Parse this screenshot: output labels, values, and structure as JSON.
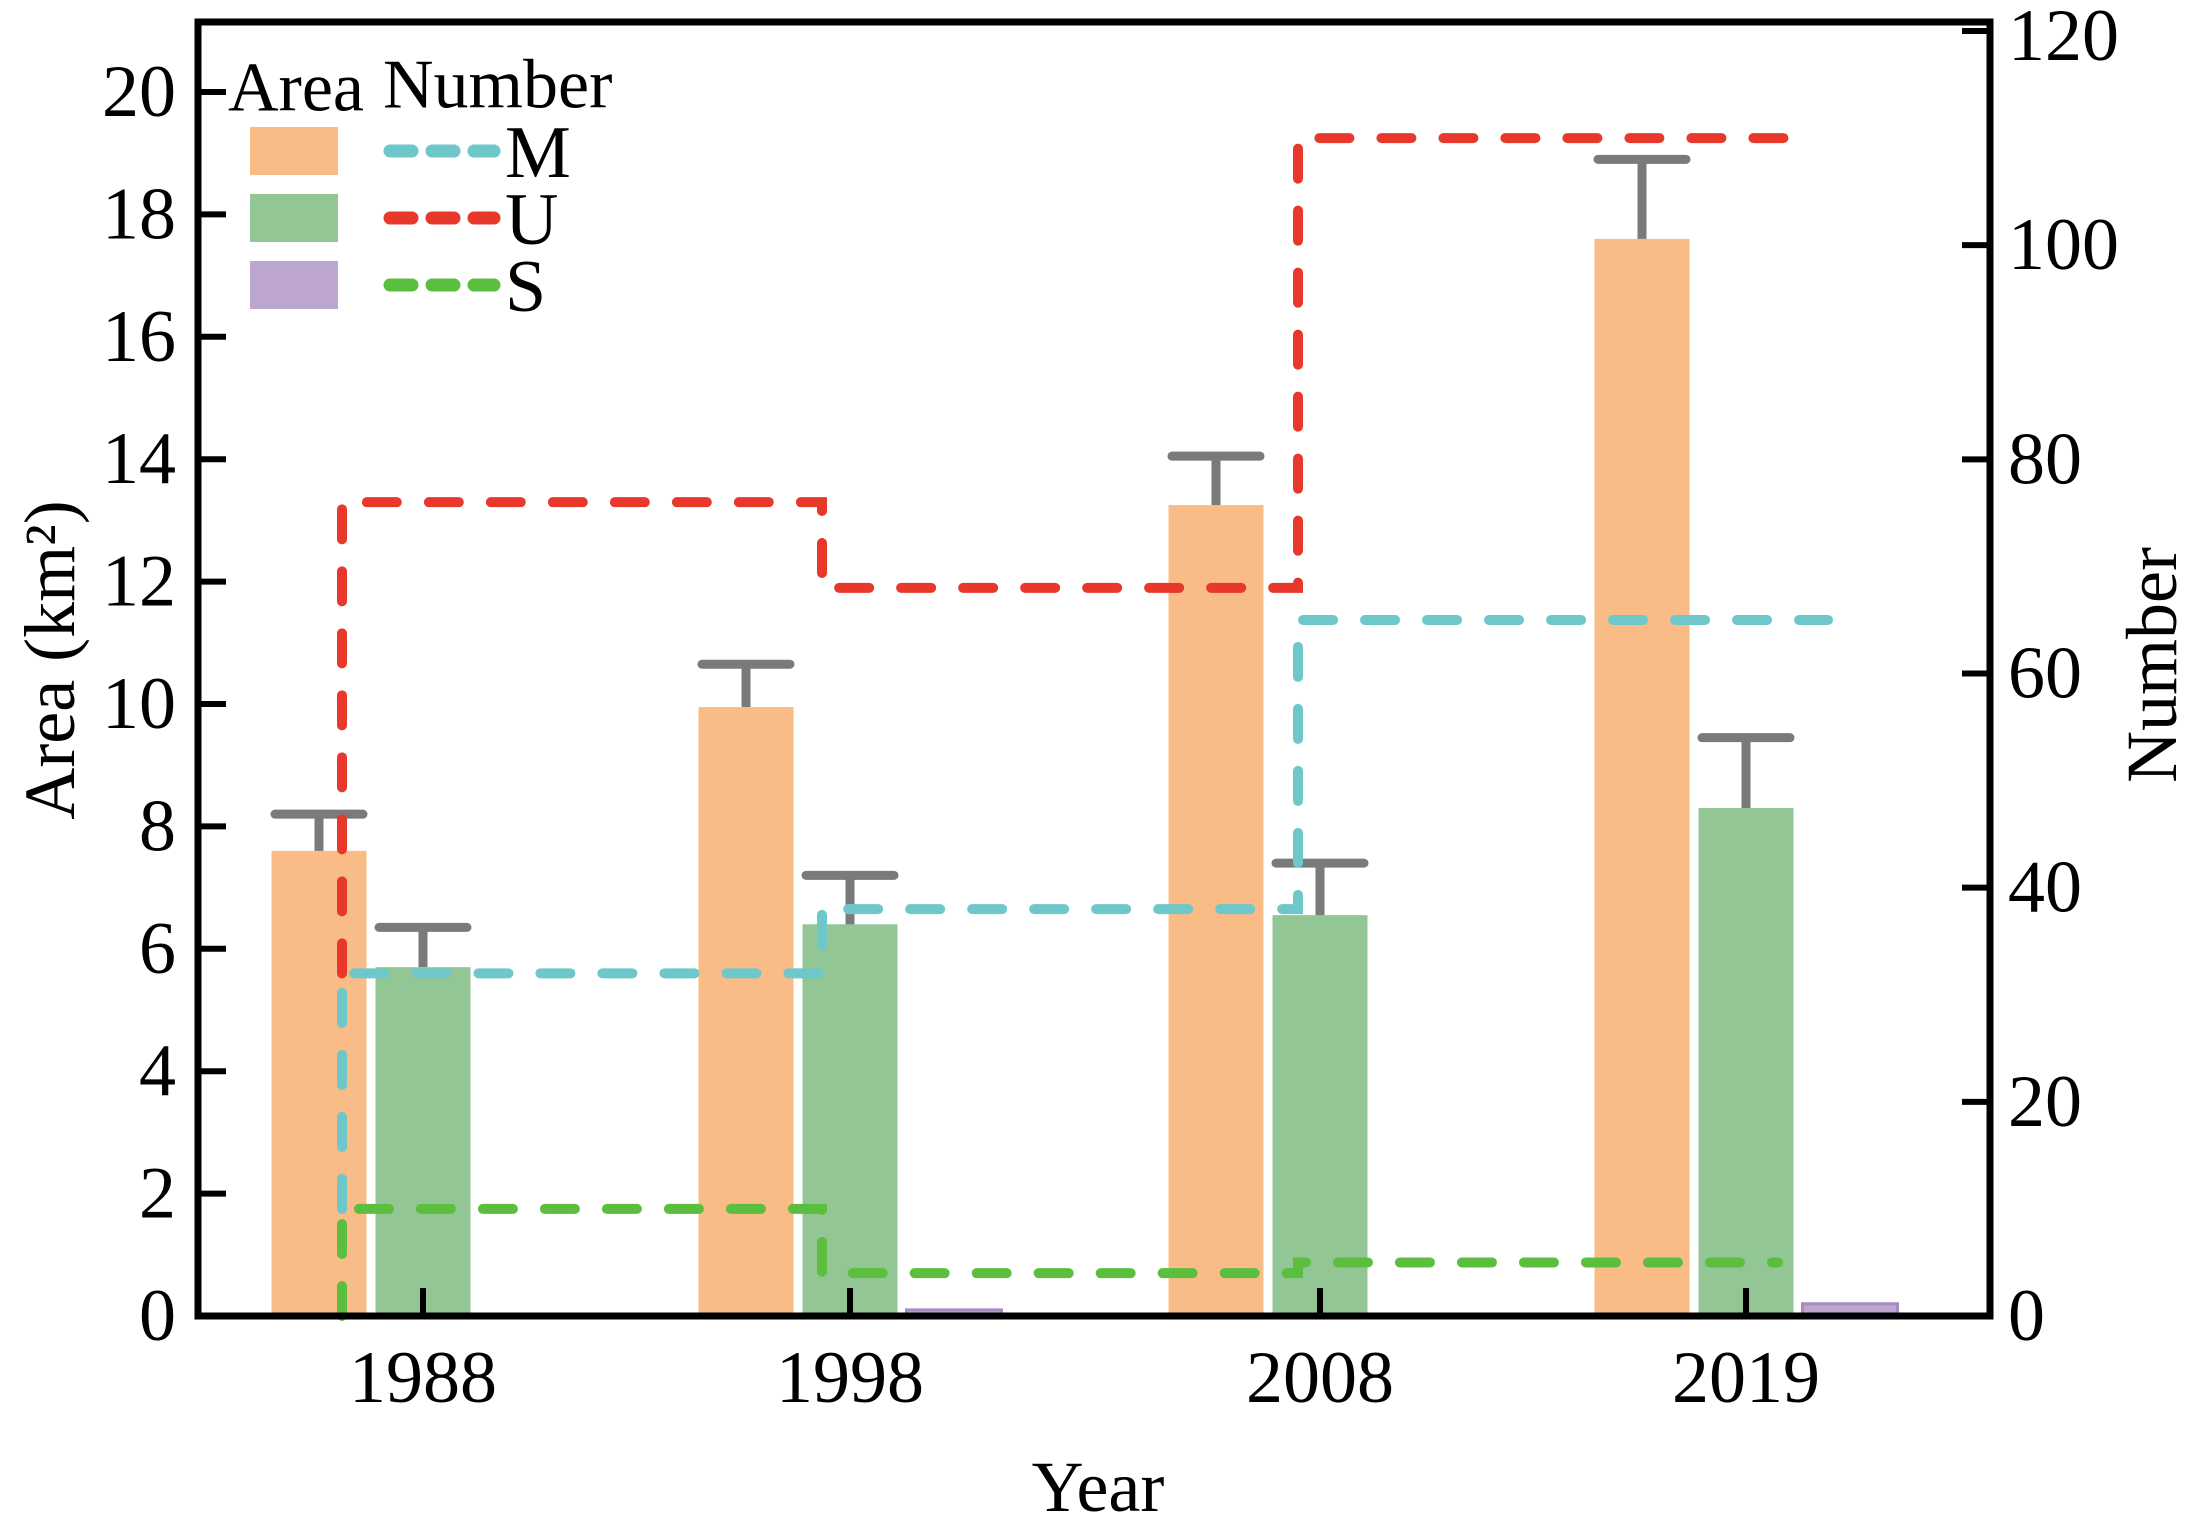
{
  "chart_data": {
    "type": "bar",
    "subtype": "grouped-bars-with-step-lines",
    "xlabel": "Year",
    "categories": [
      "1988",
      "1998",
      "2008",
      "2019"
    ],
    "left_axis": {
      "label": "Area (km²)",
      "min": 0,
      "max": 21.2,
      "ticks": [
        0,
        2,
        4,
        6,
        8,
        10,
        12,
        14,
        16,
        18,
        20
      ]
    },
    "right_axis": {
      "label": "Number",
      "min": 0,
      "max": 120.9,
      "ticks": [
        0,
        20,
        40,
        60,
        80,
        100,
        120
      ]
    },
    "bar_series": [
      {
        "name": "M",
        "color": "#F9BC87",
        "values": [
          7.6,
          9.95,
          13.25,
          17.6
        ],
        "errors": [
          0.6,
          0.7,
          0.8,
          1.3
        ]
      },
      {
        "name": "U",
        "color": "#92C795",
        "values": [
          5.7,
          6.4,
          6.55,
          8.3
        ],
        "errors": [
          0.65,
          0.8,
          0.85,
          1.15
        ]
      },
      {
        "name": "S",
        "color": "#BCA6D1",
        "values": [
          0.03,
          0.1,
          0.03,
          0.2
        ],
        "errors": [
          0,
          0,
          0,
          0
        ]
      }
    ],
    "line_series": [
      {
        "name": "M",
        "color": "#6EC7CA",
        "values": [
          32,
          38,
          65,
          65
        ]
      },
      {
        "name": "U",
        "color": "#E8382B",
        "values": [
          76,
          68,
          110,
          110
        ]
      },
      {
        "name": "S",
        "color": "#5BBE3E",
        "values": [
          10,
          4,
          5,
          5
        ]
      }
    ],
    "legend": {
      "area_label": "Area",
      "number_label": "Number",
      "entries": [
        "M",
        "U",
        "S"
      ]
    },
    "error_bar_color": "#7A7A7A",
    "axis_color": "#000000",
    "grid": false,
    "legend_position": "top-left"
  }
}
